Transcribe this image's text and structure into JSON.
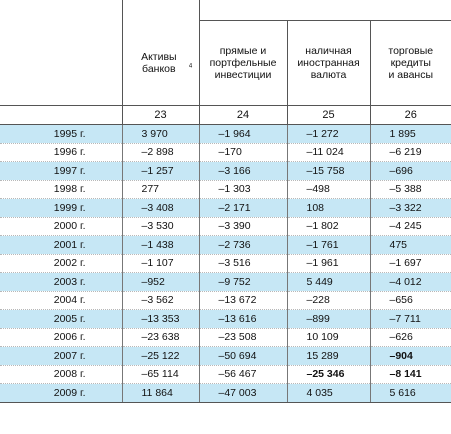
{
  "headers": {
    "col1": "Активы банков",
    "col1_sup": "4",
    "col2": [
      "прямые и",
      "портфельные",
      "инвестиции"
    ],
    "col3": [
      "наличная",
      "иностранная",
      "валюта"
    ],
    "col4": [
      "торговые",
      "кредиты",
      "и авансы"
    ]
  },
  "column_numbers": [
    "23",
    "24",
    "25",
    "26"
  ],
  "rows": [
    {
      "year": "1995 г.",
      "v": [
        "3 970",
        "–1 964",
        "–1 272",
        "1 895"
      ]
    },
    {
      "year": "1996 г.",
      "v": [
        "–2 898",
        "–170",
        "–11 024",
        "–6 219"
      ]
    },
    {
      "year": "1997 г.",
      "v": [
        "–1 257",
        "–3 166",
        "–15 758",
        "–696"
      ]
    },
    {
      "year": "1998 г.",
      "v": [
        "277",
        "–1 303",
        "–498",
        "–5 388"
      ]
    },
    {
      "year": "1999 г.",
      "v": [
        "–3 408",
        "–2 171",
        "108",
        "–3 322"
      ]
    },
    {
      "year": "2000 г.",
      "v": [
        "–3 530",
        "–3 390",
        "–1 802",
        "–4 245"
      ]
    },
    {
      "year": "2001 г.",
      "v": [
        "–1 438",
        "–2 736",
        "–1 761",
        "475"
      ]
    },
    {
      "year": "2002 г.",
      "v": [
        "–1 107",
        "–3 516",
        "–1 961",
        "–1 697"
      ]
    },
    {
      "year": "2003 г.",
      "v": [
        "–952",
        "–9 752",
        "5 449",
        "–4 012"
      ]
    },
    {
      "year": "2004 г.",
      "v": [
        "–3 562",
        "–13 672",
        "–228",
        "–656"
      ]
    },
    {
      "year": "2005 г.",
      "v": [
        "–13 353",
        "–13 616",
        "–899",
        "–7 711"
      ]
    },
    {
      "year": "2006 г.",
      "v": [
        "–23 638",
        "–23 508",
        "10 109",
        "–626"
      ]
    },
    {
      "year": "2007 г.",
      "v": [
        "–25 122",
        "–50 694",
        "15 289",
        "–904"
      ]
    },
    {
      "year": "2008 г.",
      "v": [
        "–65 114",
        "–56 467",
        "–25 346",
        "–8 141"
      ]
    },
    {
      "year": "2009 г.",
      "v": [
        "11 864",
        "–47 003",
        "4 035",
        "5 616"
      ]
    }
  ],
  "bold_cells": [
    "12.3",
    "13.2",
    "13.3"
  ],
  "colors": {
    "highlight_row": "#c6e7f5"
  }
}
